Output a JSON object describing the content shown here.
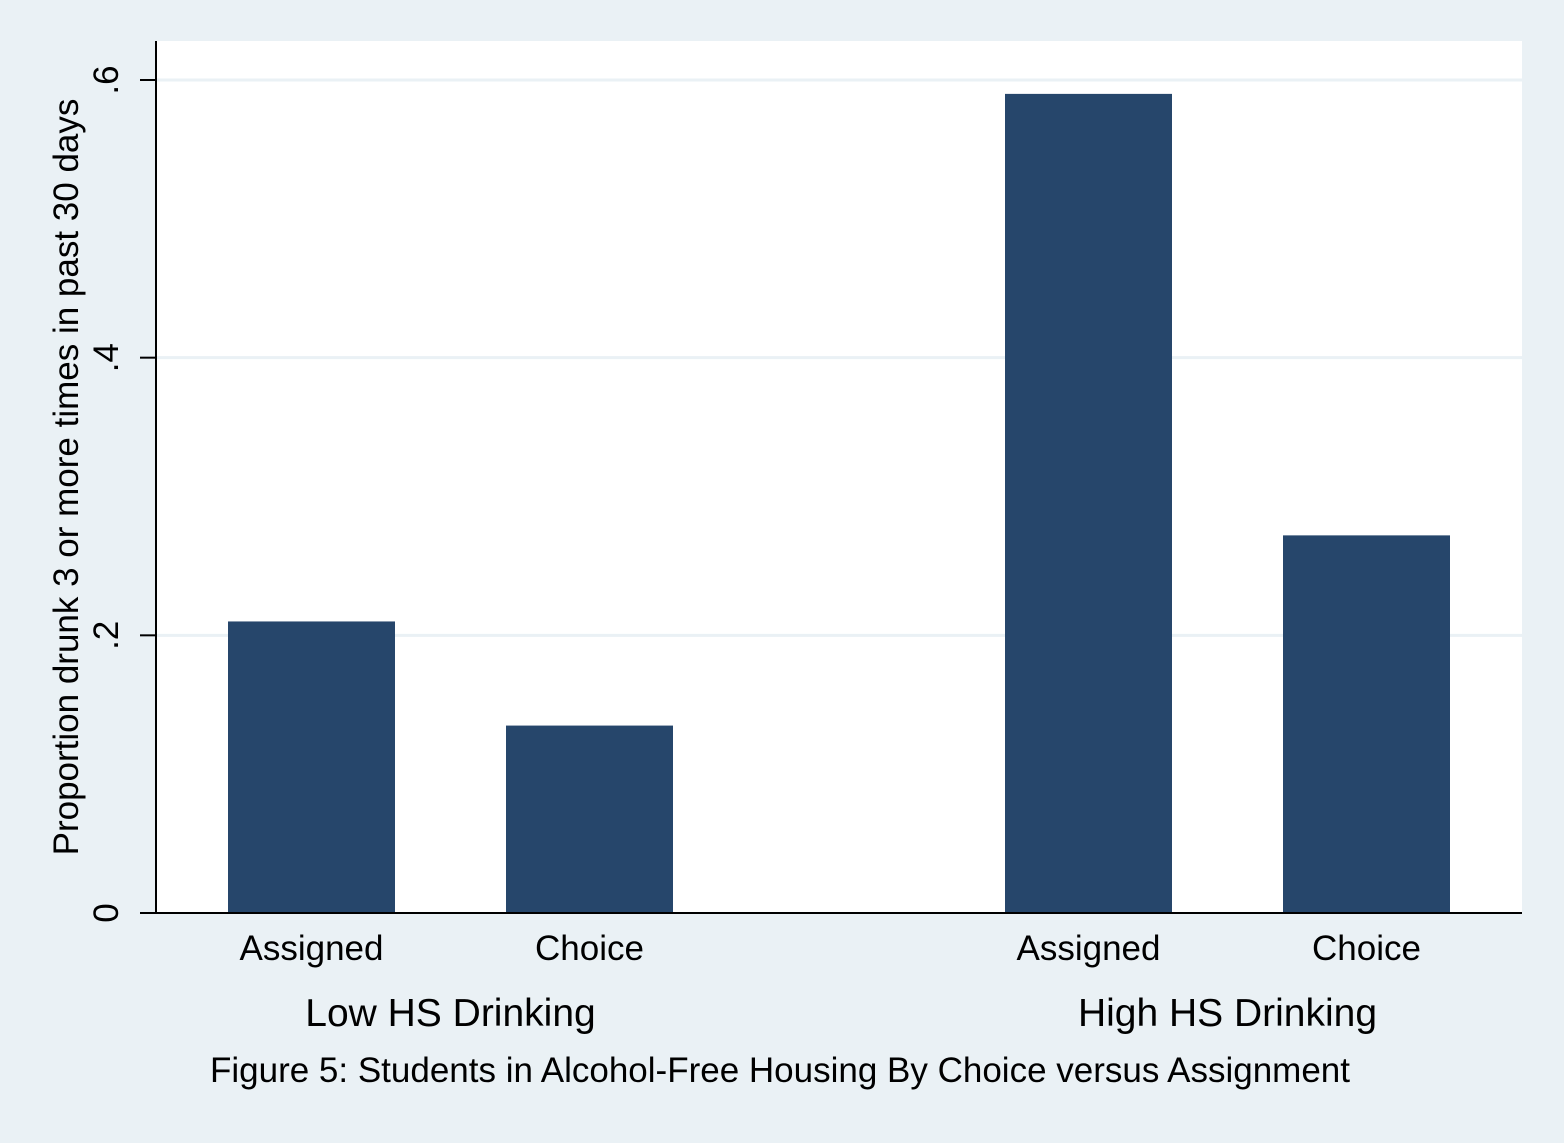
{
  "chart_data": {
    "type": "bar",
    "caption": "Figure 5: Students in Alcohol-Free Housing By Choice versus Assignment",
    "ylabel": "Proportion drunk 3 or more times in past 30 days",
    "ylim": [
      0,
      0.63
    ],
    "yticks": [
      {
        "value": 0,
        "label": "0"
      },
      {
        "value": 0.2,
        "label": ".2"
      },
      {
        "value": 0.4,
        "label": ".4"
      },
      {
        "value": 0.6,
        "label": ".6"
      }
    ],
    "grid": true,
    "groups": [
      {
        "name": "Low HS Drinking",
        "bars": [
          {
            "category": "Assigned",
            "value": 0.21
          },
          {
            "category": "Choice",
            "value": 0.135
          }
        ]
      },
      {
        "name": "High HS Drinking",
        "bars": [
          {
            "category": "Assigned",
            "value": 0.59
          },
          {
            "category": "Choice",
            "value": 0.272
          }
        ]
      }
    ],
    "bar_color": "#26466b",
    "plot_background": "#ffffff",
    "page_background": "#eaf1f5",
    "grid_color": "#eaf1f5"
  }
}
